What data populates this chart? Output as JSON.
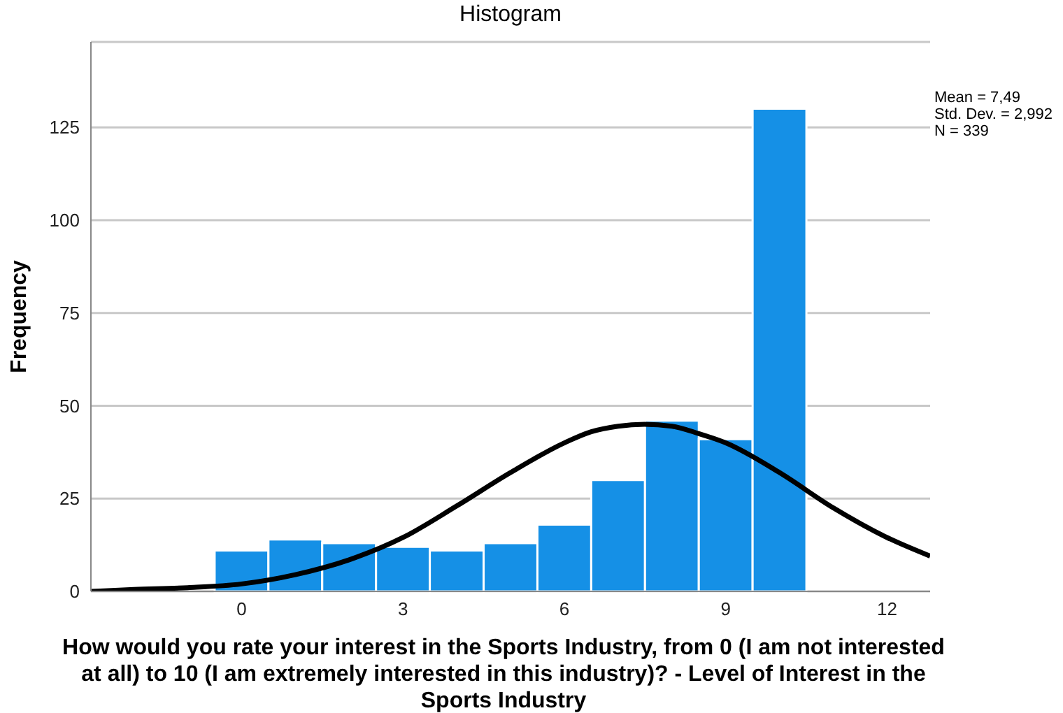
{
  "chart_data": {
    "type": "histogram",
    "title": "Histogram",
    "xlabel": "How would you rate your interest in the Sports Industry, from 0 (I am not interested at all) to 10 (I am extremely interested in this industry)? - Level of Interest in the Sports Industry",
    "ylabel": "Frequency",
    "bins": [
      -0.5,
      0.5,
      1.5,
      2.5,
      3.5,
      4.5,
      5.5,
      6.5,
      7.5,
      8.5,
      9.5,
      10.5
    ],
    "values": [
      11,
      14,
      13,
      12,
      11,
      13,
      18,
      30,
      46,
      41,
      130
    ],
    "color": "#1590e6",
    "series": [
      {
        "type": "line",
        "color": "#000000",
        "x": [
          -2.8,
          -2,
          -1,
          0,
          1,
          2,
          3,
          4,
          5,
          6,
          6.5,
          7,
          7.49,
          8,
          8.5,
          9,
          10,
          11,
          12,
          12.8
        ],
        "values": [
          0,
          0.5,
          1,
          2,
          4.5,
          8.5,
          14.5,
          23,
          32,
          40,
          43,
          44.5,
          45,
          44.5,
          42.5,
          40,
          32,
          22.5,
          14.5,
          9.5
        ]
      }
    ],
    "xlim": [
      -2.8,
      12.8
    ],
    "xticks": [
      0,
      3,
      6,
      9,
      12
    ],
    "ylim": [
      0,
      148
    ],
    "yticks": [
      0,
      25,
      50,
      75,
      100,
      125
    ],
    "grid": "y",
    "marker": "none",
    "line_style": "solid",
    "annotations": [
      "Mean = 7,49",
      "Std. Dev. = 2,992",
      "N = 339"
    ]
  }
}
